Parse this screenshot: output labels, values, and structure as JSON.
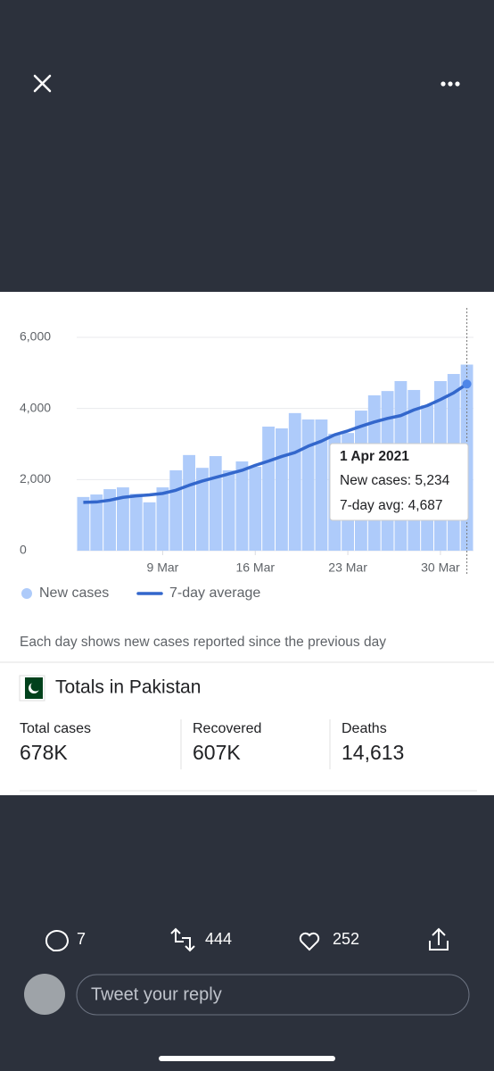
{
  "chart_data": {
    "type": "bar",
    "categories": [
      null,
      null,
      null,
      null,
      null,
      null,
      "9 Mar",
      null,
      null,
      null,
      null,
      null,
      null,
      "16 Mar",
      null,
      null,
      null,
      null,
      null,
      null,
      "23 Mar",
      null,
      null,
      null,
      null,
      null,
      null,
      "30 Mar",
      null,
      null
    ],
    "series": [
      {
        "name": "New cases",
        "color": "#aecbfa",
        "values": [
          1510,
          1580,
          1730,
          1780,
          1600,
          1360,
          1780,
          2260,
          2690,
          2330,
          2660,
          2260,
          2510,
          2360,
          3490,
          3440,
          3870,
          3690,
          3690,
          3290,
          3310,
          3940,
          4370,
          4490,
          4770,
          4520,
          4090,
          4770,
          4970,
          5234
        ]
      },
      {
        "name": "7-day average",
        "color": "#3367cc",
        "type": "line",
        "values": [
          1360,
          1370,
          1420,
          1500,
          1540,
          1570,
          1610,
          1700,
          1840,
          1960,
          2060,
          2160,
          2260,
          2400,
          2520,
          2650,
          2760,
          2940,
          3080,
          3260,
          3370,
          3500,
          3620,
          3720,
          3800,
          3960,
          4080,
          4250,
          4440,
          4687
        ]
      }
    ],
    "ylim": [
      0,
      6000
    ],
    "yticks": [
      0,
      {
        "value": 2000,
        "label": "2,000"
      },
      {
        "value": 4000,
        "label": "4,000"
      },
      {
        "value": 6000,
        "label": "6,000"
      }
    ],
    "grid": true,
    "tooltip": {
      "title": "1 Apr 2021",
      "lines": [
        "New cases: 5,234",
        "7-day avg: 4,687"
      ]
    },
    "note": "Each day shows new cases reported since the previous day"
  },
  "totals": {
    "title": "Totals in Pakistan",
    "stats": [
      {
        "label": "Total cases",
        "value": "678K"
      },
      {
        "label": "Recovered",
        "value": "607K"
      },
      {
        "label": "Deaths",
        "value": "14,613"
      }
    ]
  },
  "actions": {
    "replies": "7",
    "retweets": "444",
    "likes": "252"
  },
  "reply_placeholder": "Tweet your reply"
}
